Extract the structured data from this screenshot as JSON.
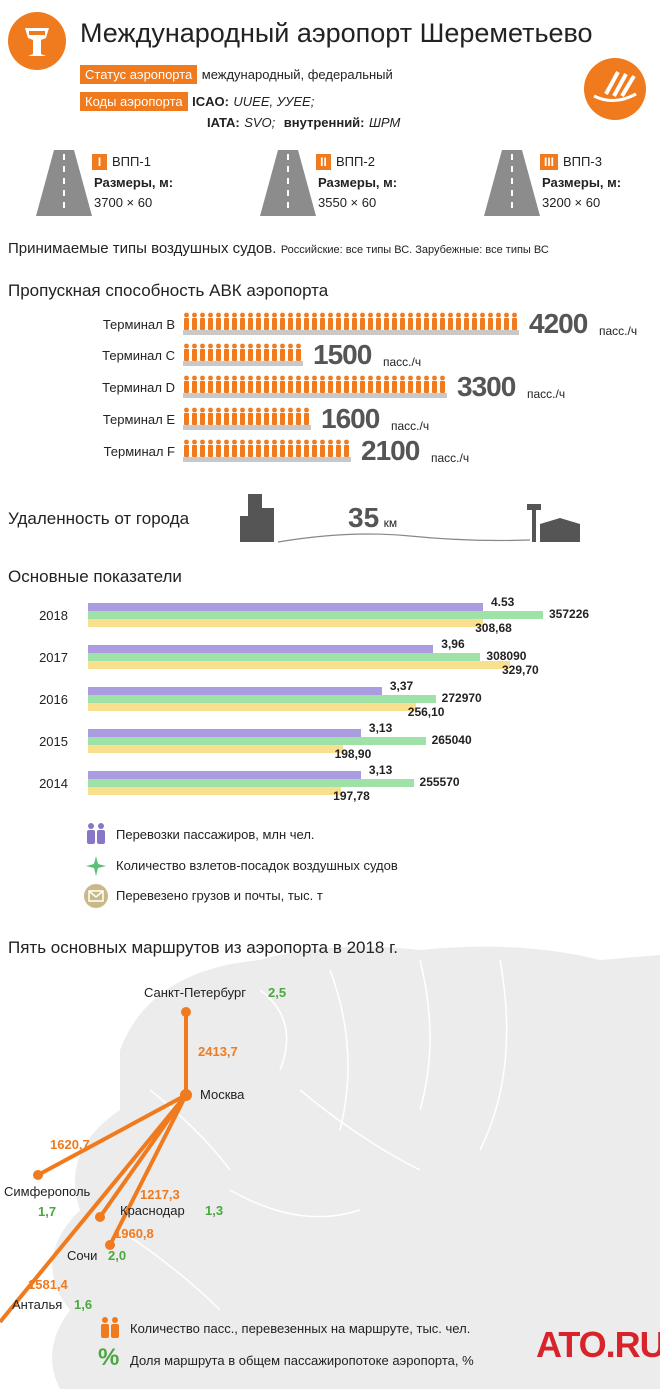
{
  "title": "Международный аэропорт Шереметьево",
  "status": {
    "label": "Статус аэропорта",
    "value": "международный, федеральный"
  },
  "codes": {
    "label": "Коды аэропорта",
    "icao_label": "ICAO:",
    "icao_value": "UUEE, УУЕЕ;",
    "iata_label": "IATA:",
    "iata_value": "SVO;",
    "internal_label": "внутренний:",
    "internal_value": "ШРМ"
  },
  "runways": [
    {
      "badge": "I",
      "name": "ВПП-1",
      "size_label": "Размеры, м:",
      "size": "3700 × 60"
    },
    {
      "badge": "II",
      "name": "ВПП-2",
      "size_label": "Размеры, м:",
      "size": "3550 × 60"
    },
    {
      "badge": "III",
      "name": "ВПП-3",
      "size_label": "Размеры, м:",
      "size": "3200 × 60"
    }
  ],
  "aircraft": {
    "heading": "Принимаемые типы воздушных судов.",
    "detail": "Российские: все типы ВС. Зарубежные: все типы ВС"
  },
  "capacity": {
    "heading": "Пропускная способность АВК аэропорта",
    "unit": "пасс./ч",
    "terminals": [
      {
        "name": "Терминал B",
        "value": "4200"
      },
      {
        "name": "Терминал C",
        "value": "1500"
      },
      {
        "name": "Терминал D",
        "value": "3300"
      },
      {
        "name": "Терминал E",
        "value": "1600"
      },
      {
        "name": "Терминал F",
        "value": "2100"
      }
    ]
  },
  "distance": {
    "heading": "Удаленность от города",
    "value": "35",
    "unit": "км"
  },
  "indicators": {
    "heading": "Основные показатели",
    "colors": {
      "passengers": "#ab9be0",
      "flights": "#9ee2a8",
      "cargo": "#f9e08e"
    },
    "legend": [
      {
        "icon": "people-icon",
        "text": "Перевозки пассажиров, млн чел."
      },
      {
        "icon": "plane-icon",
        "text": "Количество взлетов-посадок воздушных судов"
      },
      {
        "icon": "envelope-icon",
        "text": "Перевезено грузов и почты, тыс. т"
      }
    ]
  },
  "chart_data": {
    "type": "bar",
    "orientation": "horizontal",
    "categories": [
      "2018",
      "2017",
      "2016",
      "2015",
      "2014"
    ],
    "series": [
      {
        "name": "Перевозки пассажиров, млн чел.",
        "values": [
          4.53,
          3.96,
          3.37,
          3.13,
          3.13
        ],
        "labels": [
          "4.53",
          "3,96",
          "3,37",
          "3,13",
          "3,13"
        ]
      },
      {
        "name": "Количество взлетов-посадок воздушных судов",
        "values": [
          357226,
          308090,
          272970,
          265040,
          255570
        ],
        "labels": [
          "357226",
          "308090",
          "272970",
          "265040",
          "255570"
        ]
      },
      {
        "name": "Перевезено грузов и почты, тыс. т",
        "values": [
          308.68,
          329.7,
          256.1,
          198.9,
          197.78
        ],
        "labels": [
          "308,68",
          "329,70",
          "256,10",
          "198,90",
          "197,78"
        ]
      }
    ]
  },
  "routes": {
    "heading": "Пять основных маршрутов из аэропорта в 2018 г.",
    "hub": "Москва",
    "items": [
      {
        "city": "Санкт-Петербург",
        "passengers": "2413,7",
        "share": "2,5"
      },
      {
        "city": "Симферополь",
        "passengers": "1620,7",
        "share": "1,7"
      },
      {
        "city": "Краснодар",
        "passengers": "1217,3",
        "share": "1,3"
      },
      {
        "city": "Сочи",
        "passengers": "1960,8",
        "share": "2,0"
      },
      {
        "city": "Анталья",
        "passengers": "1581,4",
        "share": "1,6"
      }
    ],
    "legend": [
      {
        "icon": "people-icon",
        "text": "Количество пасс., перевезенных на маршруте, тыс. чел."
      },
      {
        "icon": "percent-icon",
        "text": "Доля маршрута в общем пассажиропотоке аэропорта, %"
      }
    ]
  },
  "brand": {
    "logo": "ATO.RU",
    "accent": "#f07a1e"
  }
}
